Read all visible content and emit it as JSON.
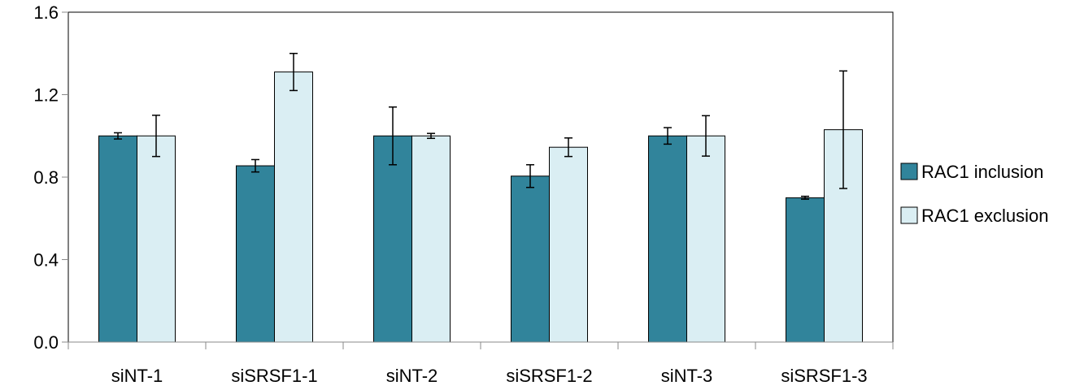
{
  "chart_data": {
    "type": "bar",
    "categories": [
      "siNT-1",
      "siSRSF1-1",
      "siNT-2",
      "siSRSF1-2",
      "siNT-3",
      "siSRSF1-3"
    ],
    "series": [
      {
        "name": "RAC1 inclusion",
        "color": "#31849B",
        "values": [
          1.0,
          0.855,
          1.0,
          0.805,
          1.0,
          0.7
        ],
        "errors": [
          0.015,
          0.03,
          0.14,
          0.055,
          0.04,
          0.007
        ]
      },
      {
        "name": "RAC1 exclusion",
        "color": "#DAEEF3",
        "values": [
          1.0,
          1.31,
          1.0,
          0.945,
          1.0,
          1.03
        ],
        "errors": [
          0.1,
          0.09,
          0.012,
          0.045,
          0.098,
          0.285
        ]
      }
    ],
    "y_ticks": [
      "0.0",
      "0.4",
      "0.8",
      "1.2",
      "1.6"
    ],
    "ylim": [
      0,
      1.6
    ],
    "grid": false,
    "legend_position": "right"
  }
}
